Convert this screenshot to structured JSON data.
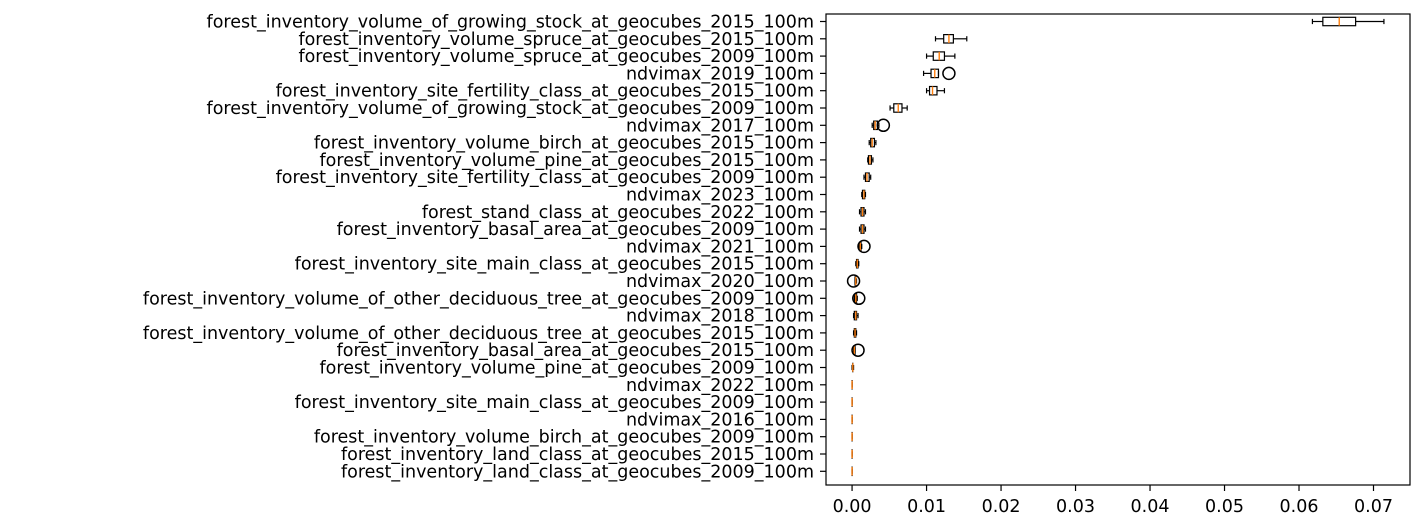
{
  "chart_data": {
    "type": "boxplot",
    "orientation": "horizontal",
    "title": "",
    "xlabel": "",
    "ylabel": "",
    "xlim": [
      -0.0035,
      0.0749
    ],
    "xticks": [
      "0.00",
      "0.01",
      "0.02",
      "0.03",
      "0.04",
      "0.05",
      "0.06",
      "0.07"
    ],
    "grid": false,
    "colors": {
      "box": "#000000",
      "median": "#ff7f0e",
      "outlier": "#000000"
    },
    "categories": [
      "forest_inventory_volume_of_growing_stock_at_geocubes_2015_100m",
      "forest_inventory_volume_spruce_at_geocubes_2015_100m",
      "forest_inventory_volume_spruce_at_geocubes_2009_100m",
      "ndvimax_2019_100m",
      "forest_inventory_site_fertility_class_at_geocubes_2015_100m",
      "forest_inventory_volume_of_growing_stock_at_geocubes_2009_100m",
      "ndvimax_2017_100m",
      "forest_inventory_volume_birch_at_geocubes_2015_100m",
      "forest_inventory_volume_pine_at_geocubes_2015_100m",
      "forest_inventory_site_fertility_class_at_geocubes_2009_100m",
      "ndvimax_2023_100m",
      "forest_stand_class_at_geocubes_2022_100m",
      "forest_inventory_basal_area_at_geocubes_2009_100m",
      "ndvimax_2021_100m",
      "forest_inventory_site_main_class_at_geocubes_2015_100m",
      "ndvimax_2020_100m",
      "forest_inventory_volume_of_other_deciduous_tree_at_geocubes_2009_100m",
      "ndvimax_2018_100m",
      "forest_inventory_volume_of_other_deciduous_tree_at_geocubes_2015_100m",
      "forest_inventory_basal_area_at_geocubes_2015_100m",
      "forest_inventory_volume_pine_at_geocubes_2009_100m",
      "ndvimax_2022_100m",
      "forest_inventory_site_main_class_at_geocubes_2009_100m",
      "ndvimax_2016_100m",
      "forest_inventory_volume_birch_at_geocubes_2009_100m",
      "forest_inventory_land_class_at_geocubes_2015_100m",
      "forest_inventory_land_class_at_geocubes_2009_100m"
    ],
    "boxes": [
      {
        "whislo": 0.0618,
        "q1": 0.0632,
        "med": 0.0654,
        "q3": 0.0676,
        "whishi": 0.0714,
        "fliers": []
      },
      {
        "whislo": 0.0112,
        "q1": 0.0123,
        "med": 0.013,
        "q3": 0.0136,
        "whishi": 0.0154,
        "fliers": []
      },
      {
        "whislo": 0.01,
        "q1": 0.0109,
        "med": 0.0117,
        "q3": 0.0124,
        "whishi": 0.0138,
        "fliers": []
      },
      {
        "whislo": 0.0096,
        "q1": 0.0106,
        "med": 0.0111,
        "q3": 0.0116,
        "whishi": 0.0116,
        "fliers": [
          0.013
        ]
      },
      {
        "whislo": 0.01,
        "q1": 0.0104,
        "med": 0.0108,
        "q3": 0.0114,
        "whishi": 0.0124,
        "fliers": []
      },
      {
        "whislo": 0.0051,
        "q1": 0.0056,
        "med": 0.0062,
        "q3": 0.0067,
        "whishi": 0.0074,
        "fliers": []
      },
      {
        "whislo": 0.0027,
        "q1": 0.0029,
        "med": 0.0031,
        "q3": 0.0034,
        "whishi": 0.0036,
        "fliers": [
          0.0042
        ]
      },
      {
        "whislo": 0.0023,
        "q1": 0.0025,
        "med": 0.0027,
        "q3": 0.003,
        "whishi": 0.0032,
        "fliers": []
      },
      {
        "whislo": 0.0021,
        "q1": 0.0022,
        "med": 0.0024,
        "q3": 0.0026,
        "whishi": 0.0028,
        "fliers": []
      },
      {
        "whislo": 0.0016,
        "q1": 0.0018,
        "med": 0.002,
        "q3": 0.0023,
        "whishi": 0.0025,
        "fliers": []
      },
      {
        "whislo": 0.0013,
        "q1": 0.0014,
        "med": 0.0016,
        "q3": 0.0017,
        "whishi": 0.0018,
        "fliers": []
      },
      {
        "whislo": 0.001,
        "q1": 0.0012,
        "med": 0.0014,
        "q3": 0.0016,
        "whishi": 0.0018,
        "fliers": []
      },
      {
        "whislo": 0.001,
        "q1": 0.0012,
        "med": 0.0014,
        "q3": 0.0016,
        "whishi": 0.0018,
        "fliers": []
      },
      {
        "whislo": 0.0009,
        "q1": 0.001,
        "med": 0.0011,
        "q3": 0.0012,
        "whishi": 0.0013,
        "fliers": [
          0.0016
        ]
      },
      {
        "whislo": 0.0005,
        "q1": 0.0006,
        "med": 0.0007,
        "q3": 0.0008,
        "whishi": 0.0009,
        "fliers": []
      },
      {
        "whislo": 0.0004,
        "q1": 0.0004,
        "med": 0.0005,
        "q3": 0.0005,
        "whishi": 0.0006,
        "fliers": [
          0.0002
        ]
      },
      {
        "whislo": 0.0003,
        "q1": 0.0004,
        "med": 0.0005,
        "q3": 0.0006,
        "whishi": 0.0007,
        "fliers": [
          0.0009
        ]
      },
      {
        "whislo": 0.0002,
        "q1": 0.0003,
        "med": 0.0005,
        "q3": 0.0006,
        "whishi": 0.0008,
        "fliers": []
      },
      {
        "whislo": 0.0002,
        "q1": 0.0003,
        "med": 0.0004,
        "q3": 0.0005,
        "whishi": 0.0006,
        "fliers": []
      },
      {
        "whislo": 0.0002,
        "q1": 0.0002,
        "med": 0.0003,
        "q3": 0.0004,
        "whishi": 0.0004,
        "fliers": [
          0.0008
        ]
      },
      {
        "whislo": 0.0,
        "q1": 0.0001,
        "med": 0.0001,
        "q3": 0.0001,
        "whishi": 0.0002,
        "fliers": []
      },
      {
        "whislo": 0.0,
        "q1": 0.0,
        "med": 0.0,
        "q3": 0.0,
        "whishi": 0.0,
        "fliers": []
      },
      {
        "whislo": 0.0,
        "q1": 0.0,
        "med": 0.0,
        "q3": 0.0,
        "whishi": 0.0,
        "fliers": []
      },
      {
        "whislo": 0.0,
        "q1": 0.0,
        "med": 0.0,
        "q3": 0.0,
        "whishi": 0.0,
        "fliers": []
      },
      {
        "whislo": 0.0,
        "q1": 0.0,
        "med": 0.0,
        "q3": 0.0,
        "whishi": 0.0,
        "fliers": []
      },
      {
        "whislo": 0.0,
        "q1": 0.0,
        "med": 0.0,
        "q3": 0.0,
        "whishi": 0.0,
        "fliers": []
      },
      {
        "whislo": 0.0,
        "q1": 0.0,
        "med": 0.0,
        "q3": 0.0,
        "whishi": 0.0,
        "fliers": []
      }
    ]
  }
}
